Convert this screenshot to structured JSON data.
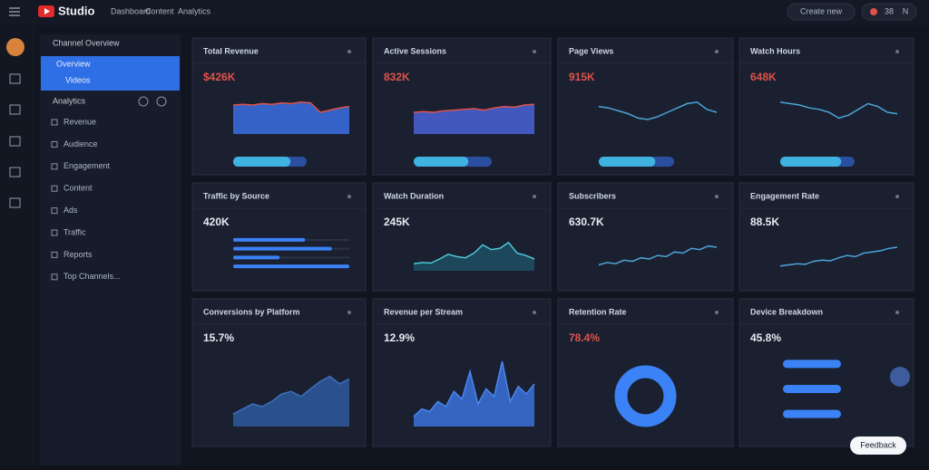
{
  "header": {
    "brand": "Studio",
    "nav": [
      "Dashboard",
      "Content",
      "Analytics"
    ],
    "create_button": "Create new",
    "notifications": "38",
    "account": "N"
  },
  "sidebar": {
    "section": "Channel Overview",
    "active": [
      "Overview",
      "Videos"
    ],
    "group": "Analytics",
    "items": [
      "Revenue",
      "Audience",
      "Engagement",
      "Content",
      "Ads",
      "Traffic",
      "Reports",
      "Top Channels..."
    ]
  },
  "cards": [
    {
      "title": "Total Revenue",
      "metric": "$426K",
      "metric_color": "#e0524a",
      "chart": {
        "type": "area",
        "color": "#3b6fe0",
        "line": "#e0524a",
        "ylim": [
          0,
          60
        ],
        "values": [
          40,
          41,
          40,
          42,
          41,
          43,
          42,
          44,
          43,
          30,
          33,
          36,
          38
        ]
      },
      "progress": 78
    },
    {
      "title": "Active Sessions",
      "metric": "832K",
      "metric_color": "#e0524a",
      "chart": {
        "type": "area",
        "color": "#4a63d8",
        "line": "#e0524a",
        "ylim": [
          0,
          60
        ],
        "values": [
          30,
          31,
          30,
          32,
          33,
          34,
          35,
          33,
          36,
          38,
          37,
          40,
          41
        ]
      },
      "progress": 70
    },
    {
      "title": "Page Views",
      "metric": "915K",
      "metric_color": "#e0524a",
      "chart": {
        "type": "line",
        "color": "#4da3d8",
        "ylim": [
          0,
          60
        ],
        "values": [
          38,
          36,
          32,
          28,
          22,
          20,
          24,
          30,
          36,
          42,
          44,
          34,
          30
        ]
      },
      "progress": 75
    },
    {
      "title": "Watch Hours",
      "metric": "648K",
      "metric_color": "#e0524a",
      "chart": {
        "type": "line",
        "color": "#4da3d8",
        "ylim": [
          0,
          60
        ],
        "values": [
          44,
          42,
          40,
          36,
          34,
          30,
          22,
          26,
          34,
          42,
          38,
          30,
          28
        ]
      },
      "progress": 82
    },
    {
      "title": "Traffic by Source",
      "metric": "420K",
      "metric_color": "#e6e9f0",
      "chart": {
        "type": "hbar",
        "color": "#3b82f6",
        "ylim": [
          0,
          100
        ],
        "values": [
          62,
          85,
          40,
          100
        ]
      }
    },
    {
      "title": "Watch Duration",
      "metric": "245K",
      "metric_color": "#e6e9f0",
      "chart": {
        "type": "area",
        "color": "#1f4f63",
        "line": "#4dc7d8",
        "ylim": [
          0,
          60
        ],
        "values": [
          12,
          14,
          13,
          20,
          28,
          24,
          22,
          30,
          44,
          36,
          38,
          48,
          30,
          26,
          20
        ]
      }
    },
    {
      "title": "Subscribers",
      "metric": "630.7K",
      "metric_color": "#e6e9f0",
      "chart": {
        "type": "line",
        "color": "#4da3d8",
        "ylim": [
          0,
          60
        ],
        "values": [
          10,
          14,
          12,
          18,
          16,
          22,
          20,
          26,
          24,
          32,
          30,
          38,
          36,
          42,
          40
        ]
      }
    },
    {
      "title": "Engagement Rate",
      "metric": "88.5K",
      "metric_color": "#e6e9f0",
      "chart": {
        "type": "line",
        "color": "#4da3d8",
        "ylim": [
          0,
          60
        ],
        "values": [
          8,
          10,
          12,
          11,
          16,
          18,
          17,
          22,
          26,
          24,
          30,
          32,
          34,
          38,
          40
        ]
      }
    },
    {
      "title": "Conversions by Platform",
      "metric": "15.7%",
      "metric_color": "#e6e9f0",
      "chart": {
        "type": "area",
        "color": "#2f5a9e",
        "line": "#3f6fc0",
        "ylim": [
          0,
          60
        ],
        "values": [
          10,
          14,
          18,
          16,
          20,
          26,
          28,
          24,
          30,
          36,
          40,
          34,
          38
        ]
      }
    },
    {
      "title": "Revenue per Stream",
      "metric": "12.9%",
      "metric_color": "#e6e9f0",
      "chart": {
        "type": "area",
        "color": "#3b72d9",
        "line": "#4a86f0",
        "ylim": [
          0,
          60
        ],
        "values": [
          8,
          14,
          12,
          20,
          16,
          28,
          22,
          44,
          18,
          30,
          24,
          52,
          20,
          32,
          26,
          34
        ]
      }
    },
    {
      "title": "Retention Rate",
      "metric": "78.4%",
      "metric_color": "#e0524a",
      "chart": {
        "type": "donut",
        "color": "#3b82f6",
        "ylim": [
          0,
          100
        ],
        "values": [
          100
        ]
      }
    },
    {
      "title": "Device Breakdown",
      "metric": "45.8%",
      "metric_color": "#e6e9f0",
      "chart": {
        "type": "pill",
        "color": "#3b82f6",
        "ylim": [
          0,
          100
        ],
        "values": [
          100,
          100,
          100
        ]
      }
    }
  ],
  "feedback": "Feedback"
}
